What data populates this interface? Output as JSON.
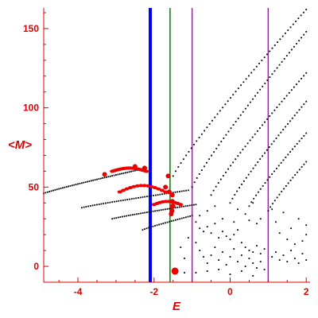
{
  "chart_data": {
    "type": "scatter",
    "title": "",
    "xlabel": "E",
    "ylabel": "<M>",
    "xlim": [
      -4.9,
      2.1
    ],
    "ylim": [
      -10,
      163
    ],
    "xticks": [
      -4,
      -2,
      0,
      2
    ],
    "yticks": [
      0,
      50,
      100,
      150
    ],
    "grid": false,
    "legend": "none",
    "colors": {
      "axis": "#dd0000",
      "black_points": "#000000",
      "red_points": "#ee0000"
    },
    "vlines": [
      {
        "x": -2.1,
        "color": "#0000ff",
        "style": "thick"
      },
      {
        "x": -1.58,
        "color": "#008000",
        "style": "thin"
      },
      {
        "x": -1.0,
        "color": "#cc00cc",
        "style": "thin"
      },
      {
        "x": 1.0,
        "color": "#cc00cc",
        "style": "thin"
      }
    ],
    "series": [
      {
        "marker": "small-black-dot",
        "curves": [
          {
            "x_start": -4.9,
            "x_end": -2.2,
            "y_start": 46,
            "y_end": 62,
            "n": 55
          },
          {
            "x_start": -3.9,
            "x_end": -1.1,
            "y_start": 37,
            "y_end": 48,
            "n": 50
          },
          {
            "x_start": -3.1,
            "x_end": -0.9,
            "y_start": 30,
            "y_end": 39,
            "n": 42
          },
          {
            "x_start": -2.3,
            "x_end": -1.0,
            "y_start": 23,
            "y_end": 32,
            "n": 25
          },
          {
            "x_start": -1.5,
            "x_end": 2.0,
            "y_start": 57,
            "y_end": 162,
            "n": 52
          },
          {
            "x_start": -1.0,
            "x_end": 2.0,
            "y_start": 50,
            "y_end": 148,
            "n": 48
          },
          {
            "x_start": -0.5,
            "x_end": 2.0,
            "y_start": 45,
            "y_end": 122,
            "n": 40
          },
          {
            "x_start": 0.0,
            "x_end": 2.0,
            "y_start": 40,
            "y_end": 104,
            "n": 34
          },
          {
            "x_start": 0.5,
            "x_end": 2.0,
            "y_start": 38,
            "y_end": 84,
            "n": 26
          },
          {
            "x_start": 1.0,
            "x_end": 2.0,
            "y_start": 35,
            "y_end": 66,
            "n": 18
          }
        ],
        "points": [
          [
            -0.8,
            24
          ],
          [
            -0.7,
            22
          ],
          [
            -0.6,
            25
          ],
          [
            -0.5,
            21
          ],
          [
            -0.4,
            27
          ],
          [
            -0.3,
            18
          ],
          [
            -0.2,
            22
          ],
          [
            -0.1,
            19
          ],
          [
            0.0,
            17
          ],
          [
            0.1,
            20
          ],
          [
            0.2,
            23
          ],
          [
            0.3,
            15
          ],
          [
            0.4,
            12
          ],
          [
            0.5,
            10
          ],
          [
            0.6,
            9
          ],
          [
            0.7,
            13
          ],
          [
            0.8,
            8
          ],
          [
            0.9,
            11
          ],
          [
            1.1,
            6
          ],
          [
            1.2,
            9
          ],
          [
            1.3,
            4
          ],
          [
            1.4,
            7
          ],
          [
            1.5,
            3
          ],
          [
            1.6,
            10
          ],
          [
            1.7,
            5
          ],
          [
            1.8,
            2
          ],
          [
            1.9,
            8
          ],
          [
            2.0,
            4
          ],
          [
            -0.9,
            15
          ],
          [
            -0.8,
            10
          ],
          [
            -0.7,
            6
          ],
          [
            -0.6,
            2
          ],
          [
            -0.5,
            7
          ],
          [
            -0.4,
            12
          ],
          [
            -0.3,
            4
          ],
          [
            -0.2,
            9
          ],
          [
            -0.1,
            1
          ],
          [
            0.0,
            6
          ],
          [
            0.1,
            11
          ],
          [
            0.2,
            3
          ],
          [
            0.3,
            7
          ],
          [
            0.4,
            0
          ],
          [
            0.5,
            5
          ],
          [
            0.6,
            2
          ],
          [
            0.7,
            -1
          ],
          [
            0.8,
            3
          ],
          [
            -0.9,
            -4
          ],
          [
            -0.6,
            -3
          ],
          [
            -0.3,
            -2
          ],
          [
            0.0,
            -5
          ],
          [
            0.3,
            -3
          ],
          [
            0.6,
            -6
          ],
          [
            0.9,
            -2
          ],
          [
            -0.8,
            32
          ],
          [
            -0.6,
            35
          ],
          [
            -0.4,
            38
          ],
          [
            -0.2,
            30
          ],
          [
            0.2,
            36
          ],
          [
            0.4,
            33
          ],
          [
            0.6,
            40
          ],
          [
            0.8,
            30
          ],
          [
            1.2,
            28
          ],
          [
            1.4,
            34
          ],
          [
            1.6,
            24
          ],
          [
            1.8,
            30
          ],
          [
            2.0,
            20
          ],
          [
            -1.3,
            12
          ],
          [
            -1.2,
            5
          ],
          [
            -1.1,
            18
          ],
          [
            -1.2,
            -4
          ],
          [
            -0.9,
            28
          ],
          [
            0.1,
            28
          ],
          [
            0.5,
            29
          ],
          [
            0.7,
            27
          ],
          [
            1.1,
            36
          ],
          [
            1.3,
            21
          ],
          [
            1.5,
            17
          ],
          [
            1.7,
            14
          ],
          [
            1.9,
            16
          ],
          [
            2.0,
            26
          ]
        ]
      },
      {
        "marker": "red-dot",
        "clusters": [
          {
            "x_start": -3.1,
            "x_end": -2.2,
            "y_start": 60,
            "y_end": 62,
            "n": 24
          },
          {
            "x_start": -2.9,
            "x_end": -1.7,
            "y_start": 47,
            "y_end": 51,
            "n": 14
          },
          {
            "x_start": -2.0,
            "x_end": -1.3,
            "y_start": 39,
            "y_end": 41,
            "n": 10
          }
        ],
        "points": [
          [
            -1.63,
            57
          ],
          [
            -1.52,
            45
          ],
          [
            -1.52,
            41
          ],
          [
            -1.52,
            38
          ],
          [
            -1.53,
            35
          ],
          [
            -1.55,
            33
          ],
          [
            -1.5,
            38
          ],
          [
            -1.45,
            -3
          ],
          [
            -2.25,
            62
          ],
          [
            -2.5,
            63
          ],
          [
            -1.7,
            50
          ],
          [
            -1.6,
            47
          ],
          [
            -3.3,
            58
          ]
        ]
      }
    ]
  }
}
